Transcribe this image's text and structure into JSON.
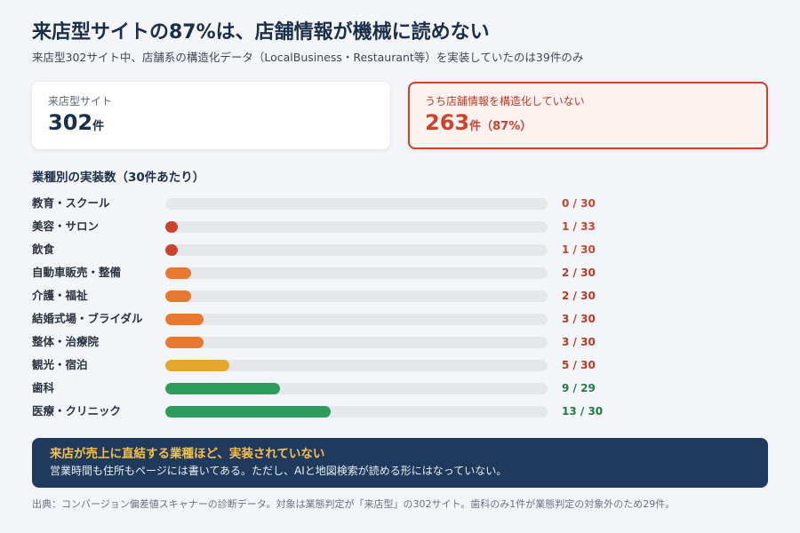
{
  "title": "来店型サイトの87%は、店舗情報が機械に読めない",
  "subtitle": "来店型302サイト中、店舗系の構造化データ（LocalBusiness・Restaurant等）を実装していたのは39件のみ",
  "cards": {
    "total": {
      "label": "来店型サイト",
      "value": "302",
      "unit": "件"
    },
    "missing": {
      "label": "うち店舗情報を構造化していない",
      "value": "263",
      "unit": "件",
      "percent": "（87%）"
    }
  },
  "section_title": "業種別の実装数（30件あたり）",
  "chart_data": {
    "type": "bar",
    "orientation": "horizontal",
    "title": "業種別の実装数（30件あたり）",
    "categories": [
      "教育・スクール",
      "美容・サロン",
      "飲食",
      "自動車販売・整備",
      "介護・福祉",
      "結婚式場・ブライダル",
      "整体・治療院",
      "観光・宿泊",
      "歯科",
      "医療・クリニック"
    ],
    "values": [
      0,
      1,
      1,
      2,
      2,
      3,
      3,
      5,
      9,
      13
    ],
    "totals": [
      30,
      33,
      30,
      30,
      30,
      30,
      30,
      30,
      29,
      30
    ],
    "value_labels": [
      "0 / 30",
      "1 / 33",
      "1 / 30",
      "2 / 30",
      "2 / 30",
      "3 / 30",
      "3 / 30",
      "5 / 30",
      "9 / 29",
      "13 / 30"
    ],
    "bar_colors": [
      "#c9432e",
      "#c9432e",
      "#c9432e",
      "#e8782f",
      "#e8782f",
      "#e8782f",
      "#e8782f",
      "#e6a52d",
      "#2e9b5a",
      "#2e9b5a"
    ],
    "label_colors": [
      "#c9432e",
      "#c9432e",
      "#c9432e",
      "#b83a25",
      "#b83a25",
      "#b83a25",
      "#b83a25",
      "#b83a25",
      "#237a45",
      "#237a45"
    ],
    "track_color": "#e6e7ea",
    "xlim": [
      0,
      30
    ],
    "grid": false
  },
  "banner": {
    "title": "来店が売上に直結する業種ほど、実装されていない",
    "body": "営業時間も住所もページには書いてある。ただし、AIと地図検索が読める形にはなっていない。"
  },
  "source": "出典：コンバージョン偏差値スキャナーの診断データ。対象は業態判定が「来店型」の302サイト。歯科のみ1件が業態判定の対象外のため29件。",
  "colors": {
    "navy": "#1b2f4b",
    "accent_red": "#c9432e",
    "banner_bg": "#1f3a5c",
    "banner_title": "#f5c04a"
  }
}
